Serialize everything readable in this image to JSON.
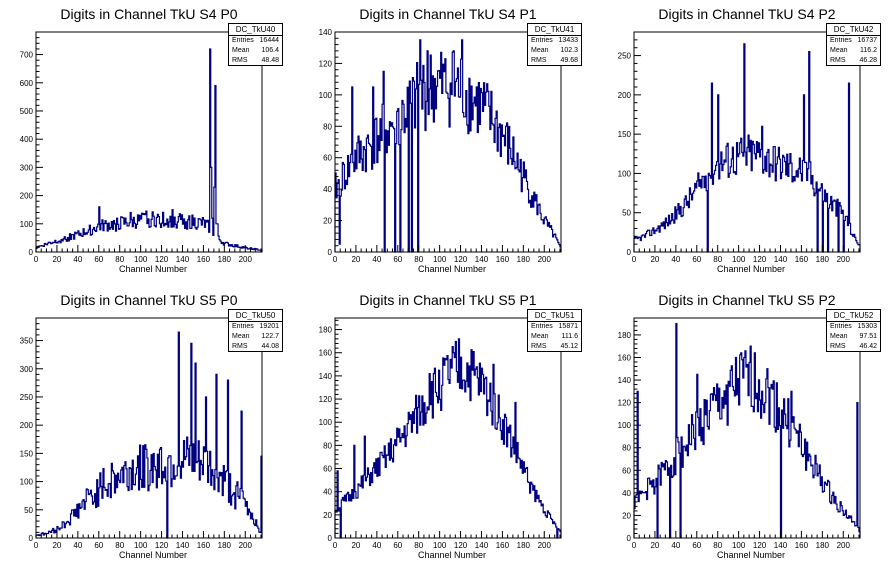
{
  "colors": {
    "histogram": "#000080",
    "axis": "#000000",
    "background": "#ffffff"
  },
  "stat_labels": {
    "entries": "Entries",
    "mean": "Mean",
    "rms": "RMS"
  },
  "chart_data": [
    {
      "type": "histogram",
      "title": "Digits in Channel TkU S4 P0",
      "xlabel": "Channel Number",
      "ylabel": "",
      "stats_name": "DC_TkU40",
      "entries": "16444",
      "mean": "106.4",
      "rms": "48.48",
      "xlim": [
        0,
        216
      ],
      "ylim": [
        0,
        780
      ],
      "xticks": [
        0,
        20,
        40,
        60,
        80,
        100,
        120,
        140,
        160,
        180,
        200
      ],
      "yticks": [
        0,
        100,
        200,
        300,
        400,
        500,
        600,
        700
      ],
      "anchors": [
        [
          0,
          15
        ],
        [
          10,
          28
        ],
        [
          20,
          40
        ],
        [
          30,
          50
        ],
        [
          40,
          60
        ],
        [
          50,
          75
        ],
        [
          60,
          90
        ],
        [
          70,
          95
        ],
        [
          80,
          100
        ],
        [
          90,
          105
        ],
        [
          100,
          110
        ],
        [
          110,
          115
        ],
        [
          120,
          115
        ],
        [
          130,
          112
        ],
        [
          140,
          110
        ],
        [
          150,
          105
        ],
        [
          160,
          100
        ],
        [
          165,
          90
        ],
        [
          167,
          100
        ],
        [
          170,
          60
        ],
        [
          180,
          30
        ],
        [
          190,
          22
        ],
        [
          200,
          15
        ],
        [
          210,
          10
        ],
        [
          216,
          5
        ]
      ],
      "spikes": [
        [
          166,
          720
        ],
        [
          167,
          300
        ],
        [
          168,
          120
        ],
        [
          170,
          230
        ],
        [
          171,
          590
        ],
        [
          172,
          100
        ],
        [
          173,
          100
        ],
        [
          60,
          160
        ],
        [
          105,
          145
        ],
        [
          90,
          140
        ],
        [
          130,
          150
        ]
      ],
      "noise": 0.25,
      "seed": 40
    },
    {
      "type": "histogram",
      "title": "Digits in Channel TkU S4 P1",
      "xlabel": "Channel Number",
      "ylabel": "",
      "stats_name": "DC_TkU41",
      "entries": "13433",
      "mean": "102.3",
      "rms": "49.68",
      "xlim": [
        0,
        216
      ],
      "ylim": [
        0,
        140
      ],
      "xticks": [
        0,
        20,
        40,
        60,
        80,
        100,
        120,
        140,
        160,
        180,
        200
      ],
      "yticks": [
        0,
        20,
        40,
        60,
        80,
        100,
        120,
        140
      ],
      "anchors": [
        [
          0,
          40
        ],
        [
          10,
          50
        ],
        [
          20,
          60
        ],
        [
          30,
          65
        ],
        [
          40,
          72
        ],
        [
          50,
          78
        ],
        [
          60,
          84
        ],
        [
          70,
          90
        ],
        [
          80,
          98
        ],
        [
          90,
          104
        ],
        [
          100,
          106
        ],
        [
          110,
          106
        ],
        [
          120,
          104
        ],
        [
          130,
          98
        ],
        [
          140,
          92
        ],
        [
          150,
          84
        ],
        [
          160,
          74
        ],
        [
          170,
          62
        ],
        [
          180,
          48
        ],
        [
          190,
          34
        ],
        [
          200,
          20
        ],
        [
          210,
          10
        ],
        [
          216,
          2
        ]
      ],
      "spikes": [
        [
          16,
          105
        ],
        [
          81,
          135
        ],
        [
          121,
          135
        ],
        [
          88,
          128
        ],
        [
          113,
          128
        ],
        [
          4,
          5
        ],
        [
          47,
          0
        ],
        [
          57,
          0
        ],
        [
          62,
          0
        ],
        [
          70,
          0
        ],
        [
          73,
          0
        ],
        [
          79,
          0
        ],
        [
          36,
          105
        ],
        [
          46,
          115
        ]
      ],
      "noise": 0.25,
      "seed": 41
    },
    {
      "type": "histogram",
      "title": "Digits in Channel TkU S4 P2",
      "xlabel": "Channel Number",
      "ylabel": "",
      "stats_name": "DC_TkU42",
      "entries": "16737",
      "mean": "116.2",
      "rms": "46.28",
      "xlim": [
        0,
        216
      ],
      "ylim": [
        0,
        280
      ],
      "xticks": [
        0,
        20,
        40,
        60,
        80,
        100,
        120,
        140,
        160,
        180,
        200
      ],
      "yticks": [
        0,
        50,
        100,
        150,
        200,
        250
      ],
      "anchors": [
        [
          0,
          15
        ],
        [
          10,
          20
        ],
        [
          20,
          28
        ],
        [
          30,
          36
        ],
        [
          40,
          48
        ],
        [
          50,
          62
        ],
        [
          60,
          80
        ],
        [
          70,
          100
        ],
        [
          80,
          112
        ],
        [
          90,
          118
        ],
        [
          100,
          122
        ],
        [
          110,
          125
        ],
        [
          120,
          124
        ],
        [
          130,
          118
        ],
        [
          140,
          112
        ],
        [
          150,
          108
        ],
        [
          160,
          104
        ],
        [
          170,
          95
        ],
        [
          180,
          75
        ],
        [
          190,
          60
        ],
        [
          200,
          50
        ],
        [
          210,
          20
        ],
        [
          216,
          8
        ]
      ],
      "spikes": [
        [
          105,
          265
        ],
        [
          167,
          255
        ],
        [
          205,
          215
        ],
        [
          74,
          215
        ],
        [
          80,
          200
        ],
        [
          122,
          160
        ],
        [
          162,
          200
        ],
        [
          70,
          0
        ],
        [
          175,
          0
        ],
        [
          180,
          0
        ],
        [
          185,
          0
        ],
        [
          195,
          0
        ],
        [
          200,
          0
        ]
      ],
      "noise": 0.22,
      "seed": 42
    },
    {
      "type": "histogram",
      "title": "Digits in Channel TkU S5 P0",
      "xlabel": "Channel Number",
      "ylabel": "",
      "stats_name": "DC_TkU50",
      "entries": "19201",
      "mean": "122.7",
      "rms": "44.08",
      "xlim": [
        0,
        216
      ],
      "ylim": [
        0,
        390
      ],
      "xticks": [
        0,
        20,
        40,
        60,
        80,
        100,
        120,
        140,
        160,
        180,
        200
      ],
      "yticks": [
        0,
        50,
        100,
        150,
        200,
        250,
        300,
        350
      ],
      "anchors": [
        [
          0,
          5
        ],
        [
          10,
          8
        ],
        [
          20,
          15
        ],
        [
          30,
          30
        ],
        [
          40,
          50
        ],
        [
          50,
          70
        ],
        [
          60,
          85
        ],
        [
          70,
          100
        ],
        [
          80,
          110
        ],
        [
          90,
          118
        ],
        [
          100,
          124
        ],
        [
          110,
          128
        ],
        [
          120,
          132
        ],
        [
          130,
          134
        ],
        [
          140,
          134
        ],
        [
          150,
          132
        ],
        [
          160,
          128
        ],
        [
          170,
          120
        ],
        [
          180,
          100
        ],
        [
          190,
          80
        ],
        [
          200,
          60
        ],
        [
          210,
          30
        ],
        [
          216,
          5
        ]
      ],
      "spikes": [
        [
          136,
          365
        ],
        [
          148,
          345
        ],
        [
          152,
          310
        ],
        [
          162,
          250
        ],
        [
          125,
          0
        ],
        [
          215,
          145
        ],
        [
          196,
          225
        ],
        [
          183,
          280
        ],
        [
          172,
          290
        ]
      ],
      "noise": 0.35,
      "seed": 50
    },
    {
      "type": "histogram",
      "title": "Digits in Channel TkU S5 P1",
      "xlabel": "Channel Number",
      "ylabel": "",
      "stats_name": "DC_TkU51",
      "entries": "15871",
      "mean": "111.6",
      "rms": "45.12",
      "xlim": [
        0,
        216
      ],
      "ylim": [
        0,
        190
      ],
      "xticks": [
        0,
        20,
        40,
        60,
        80,
        100,
        120,
        140,
        160,
        180,
        200
      ],
      "yticks": [
        0,
        20,
        40,
        60,
        80,
        100,
        120,
        140,
        160,
        180
      ],
      "anchors": [
        [
          0,
          25
        ],
        [
          10,
          32
        ],
        [
          20,
          40
        ],
        [
          30,
          50
        ],
        [
          40,
          60
        ],
        [
          50,
          70
        ],
        [
          60,
          82
        ],
        [
          70,
          95
        ],
        [
          80,
          108
        ],
        [
          90,
          120
        ],
        [
          100,
          132
        ],
        [
          110,
          142
        ],
        [
          120,
          146
        ],
        [
          130,
          142
        ],
        [
          140,
          132
        ],
        [
          150,
          118
        ],
        [
          160,
          100
        ],
        [
          170,
          80
        ],
        [
          180,
          60
        ],
        [
          190,
          40
        ],
        [
          200,
          25
        ],
        [
          210,
          12
        ],
        [
          216,
          5
        ]
      ],
      "spikes": [
        [
          118,
          172
        ],
        [
          113,
          160
        ],
        [
          151,
          150
        ],
        [
          172,
          117
        ],
        [
          90,
          142
        ],
        [
          18,
          80
        ],
        [
          28,
          88
        ],
        [
          2,
          58
        ],
        [
          5,
          0
        ],
        [
          212,
          0
        ]
      ],
      "noise": 0.18,
      "seed": 51
    },
    {
      "type": "histogram",
      "title": "Digits in Channel TkU S5 P2",
      "xlabel": "Channel Number",
      "ylabel": "",
      "stats_name": "DC_TkU52",
      "entries": "15303",
      "mean": "97.51",
      "rms": "46.42",
      "xlim": [
        0,
        216
      ],
      "ylim": [
        0,
        195
      ],
      "xticks": [
        0,
        20,
        40,
        60,
        80,
        100,
        120,
        140,
        160,
        180,
        200
      ],
      "yticks": [
        0,
        20,
        40,
        60,
        80,
        100,
        120,
        140,
        160,
        180
      ],
      "anchors": [
        [
          0,
          30
        ],
        [
          10,
          40
        ],
        [
          20,
          50
        ],
        [
          30,
          60
        ],
        [
          40,
          72
        ],
        [
          50,
          84
        ],
        [
          60,
          96
        ],
        [
          70,
          108
        ],
        [
          80,
          118
        ],
        [
          90,
          128
        ],
        [
          100,
          136
        ],
        [
          110,
          140
        ],
        [
          120,
          136
        ],
        [
          130,
          126
        ],
        [
          140,
          112
        ],
        [
          150,
          98
        ],
        [
          160,
          82
        ],
        [
          170,
          66
        ],
        [
          180,
          50
        ],
        [
          190,
          36
        ],
        [
          200,
          24
        ],
        [
          210,
          14
        ],
        [
          216,
          6
        ]
      ],
      "spikes": [
        [
          40,
          190
        ],
        [
          3,
          130
        ],
        [
          60,
          145
        ],
        [
          103,
          158
        ],
        [
          213,
          120
        ],
        [
          140,
          0
        ],
        [
          150,
          130
        ],
        [
          44,
          0
        ],
        [
          34,
          0
        ],
        [
          22,
          0
        ]
      ],
      "noise": 0.22,
      "seed": 52
    }
  ]
}
